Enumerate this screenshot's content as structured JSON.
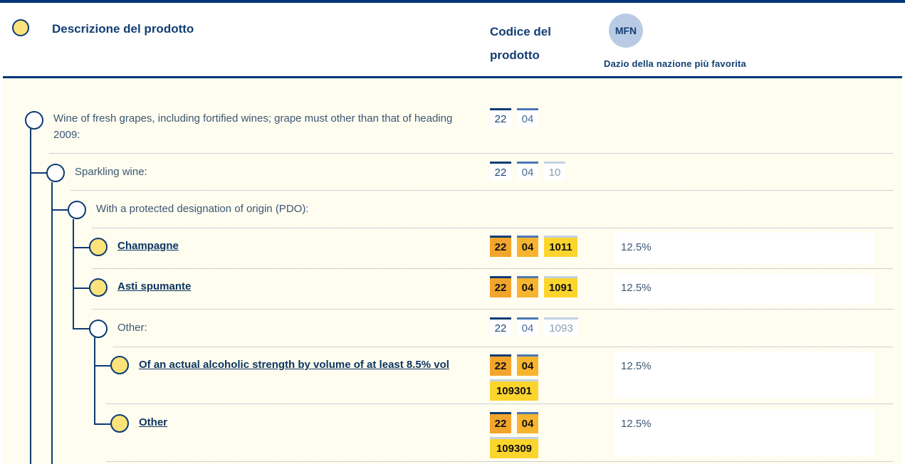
{
  "header": {
    "description_title": "Descrizione del prodotto",
    "code_title": "Codice del prodotto",
    "mfn_badge": "MFN",
    "mfn_label": "Dazio della nazione più favorita"
  },
  "rows": [
    {
      "label": "Wine of fresh grapes, including fortified wines; grape must other than that of heading 2009:",
      "code": [
        "22",
        "04"
      ]
    },
    {
      "label": "Sparkling wine:",
      "code": [
        "22",
        "04",
        "10"
      ]
    },
    {
      "label": "With a protected designation of origin (PDO):"
    },
    {
      "label": "Champagne",
      "code": [
        "22",
        "04",
        "1011"
      ],
      "duty": "12.5%"
    },
    {
      "label": "Asti spumante",
      "code": [
        "22",
        "04",
        "1091"
      ],
      "duty": "12.5%"
    },
    {
      "label": "Other:",
      "code": [
        "22",
        "04",
        "1093"
      ]
    },
    {
      "label": "Of an actual alcoholic strength by volume of at least 8.5% vol",
      "code": [
        "22",
        "04",
        "109301"
      ],
      "duty": "12.5%"
    },
    {
      "label": "Other",
      "code": [
        "22",
        "04",
        "109309"
      ],
      "duty": "12.5%"
    }
  ],
  "colors": {
    "navy": "#003577",
    "leaf_fill": "#fbe27a",
    "background": "#fefdf0",
    "chip_orange": "#f2a52c",
    "chip_yellow": "#fcd52c"
  }
}
